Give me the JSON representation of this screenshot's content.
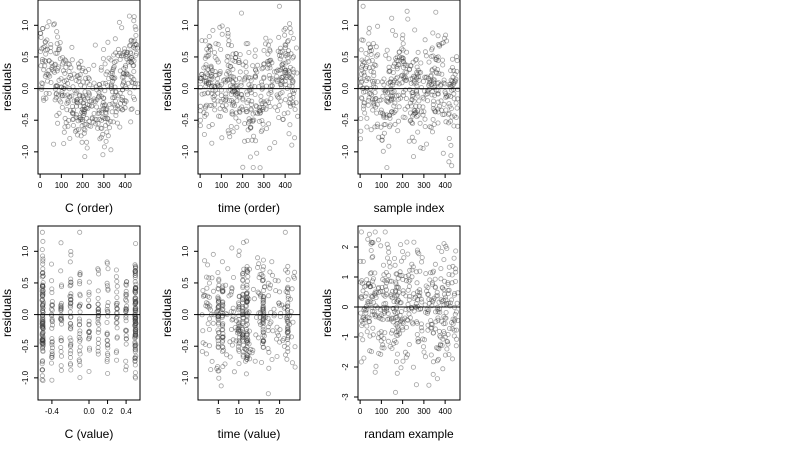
{
  "chart_data": [
    {
      "type": "scatter",
      "xlabel": "C (order)",
      "ylabel": "residuals",
      "xlim": [
        -10,
        470
      ],
      "ylim": [
        -1.35,
        1.4
      ],
      "xticks": [
        0,
        100,
        200,
        300,
        400
      ],
      "yticks": [
        -1.0,
        -0.5,
        0.0,
        0.5,
        1.0
      ],
      "ytick_labels": [
        "-1.0",
        "-0.5",
        "0.0",
        "0.5",
        "1.0"
      ],
      "zero_line": true,
      "pattern": "residuals plotted against observation order within C; approximately 460 points, positive arch near both ends and negative dip in the middle",
      "x_range": [
        0,
        460
      ],
      "y_range": [
        -1.25,
        1.3
      ],
      "n_points": 460,
      "trend": "u_shape",
      "cluster_x": []
    },
    {
      "type": "scatter",
      "xlabel": "time (order)",
      "ylabel": "residuals",
      "xlim": [
        -10,
        470
      ],
      "ylim": [
        -1.35,
        1.4
      ],
      "xticks": [
        0,
        100,
        200,
        300,
        400
      ],
      "yticks": [
        -1.0,
        -0.5,
        0.0,
        0.5,
        1.0
      ],
      "ytick_labels": [
        "-1.0",
        "-0.5",
        "0.0",
        "0.5",
        "1.0"
      ],
      "zero_line": true,
      "pattern": "residuals plotted against observation order within time; approximately 460 points with a wave pattern",
      "x_range": [
        0,
        460
      ],
      "y_range": [
        -1.25,
        1.3
      ],
      "n_points": 460,
      "trend": "wave",
      "cluster_x": []
    },
    {
      "type": "scatter",
      "xlabel": "sample index",
      "ylabel": "residuals",
      "xlim": [
        -10,
        470
      ],
      "ylim": [
        -1.35,
        1.4
      ],
      "xticks": [
        0,
        100,
        200,
        300,
        400
      ],
      "yticks": [
        -1.0,
        -0.5,
        0.0,
        0.5,
        1.0
      ],
      "ytick_labels": [
        "-1.0",
        "-0.5",
        "0.0",
        "0.5",
        "1.0"
      ],
      "zero_line": true,
      "pattern": "residuals plotted against sample index; approximately 460 points with local runs above and below zero",
      "x_range": [
        0,
        460
      ],
      "y_range": [
        -1.25,
        1.3
      ],
      "n_points": 460,
      "trend": "runs",
      "cluster_x": []
    },
    {
      "type": "scatter",
      "xlabel": "C (value)",
      "ylabel": "residuals",
      "xlim": [
        -0.55,
        0.55
      ],
      "ylim": [
        -1.35,
        1.4
      ],
      "xticks": [
        -0.4,
        0.0,
        0.2,
        0.4
      ],
      "xtick_labels": [
        "-0.4",
        "0.0",
        "0.2",
        "0.4"
      ],
      "yticks": [
        -1.0,
        -0.5,
        0.0,
        0.5,
        1.0
      ],
      "ytick_labels": [
        "-1.0",
        "-0.5",
        "0.0",
        "0.5",
        "1.0"
      ],
      "zero_line": true,
      "pattern": "residuals grouped in vertical columns at discrete C values, densest at both extremes",
      "x_range": [
        -0.5,
        0.5
      ],
      "y_range": [
        -1.25,
        1.3
      ],
      "n_points": 460,
      "trend": "columns",
      "cluster_x": [
        -0.5,
        -0.4,
        -0.3,
        -0.2,
        -0.1,
        0.0,
        0.1,
        0.2,
        0.3,
        0.4,
        0.5
      ]
    },
    {
      "type": "scatter",
      "xlabel": "time (value)",
      "ylabel": "residuals",
      "xlim": [
        0,
        25
      ],
      "ylim": [
        -1.35,
        1.4
      ],
      "xticks": [
        5,
        10,
        15,
        20
      ],
      "xtick_labels": [
        "5",
        "10",
        "15",
        "20"
      ],
      "yticks": [
        -1.0,
        -0.5,
        0.0,
        0.5,
        1.0
      ],
      "ytick_labels": [
        "-1.0",
        "-0.5",
        "0.0",
        "0.5",
        "1.0"
      ],
      "zero_line": true,
      "pattern": "residuals against time value; points between 1 and 24 with denser columns at integer times",
      "x_range": [
        1,
        24
      ],
      "y_range": [
        -1.25,
        1.3
      ],
      "n_points": 460,
      "trend": "time_columns",
      "cluster_x": [
        5,
        6,
        10,
        11,
        12,
        16,
        22
      ]
    },
    {
      "type": "scatter",
      "xlabel": "randam example",
      "ylabel": "residuals",
      "xlim": [
        -10,
        470
      ],
      "ylim": [
        -3.1,
        2.7
      ],
      "xticks": [
        0,
        100,
        200,
        300,
        400
      ],
      "yticks": [
        -3,
        -2,
        -1,
        0,
        1,
        2
      ],
      "ytick_labels": [
        "-3",
        "-2",
        "-1",
        "0",
        "1",
        "2"
      ],
      "zero_line": true,
      "pattern": "random normal residuals with no structure for comparison; approximately 460 points",
      "x_range": [
        0,
        460
      ],
      "y_range": [
        -2.9,
        2.5
      ],
      "n_points": 460,
      "trend": "random",
      "cluster_x": []
    }
  ]
}
